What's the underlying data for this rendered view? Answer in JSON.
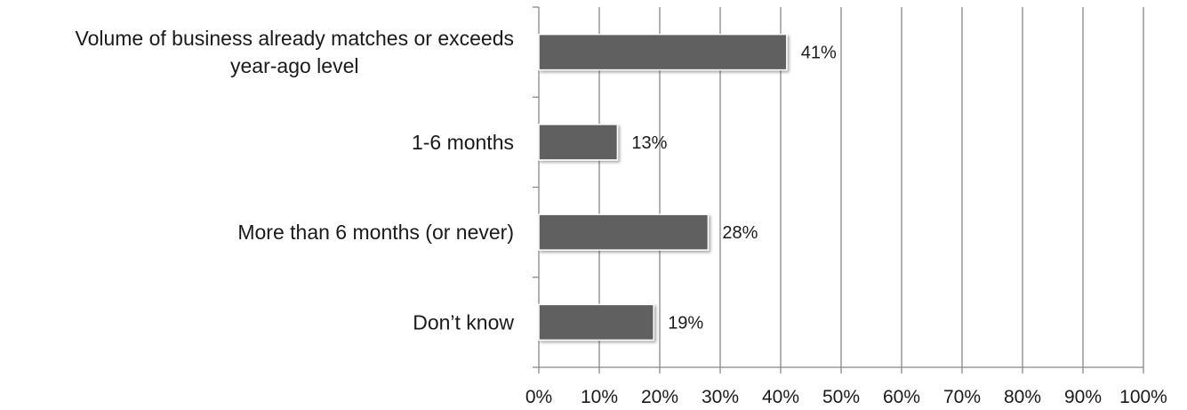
{
  "chart_data": {
    "type": "bar",
    "orientation": "horizontal",
    "categories": [
      "Volume of business already matches or exceeds year-ago level",
      "1-6 months",
      "More than 6 months (or never)",
      "Don’t know"
    ],
    "category_lines": [
      [
        "Volume of business already matches or exceeds",
        "year-ago level"
      ],
      [
        "1-6 months"
      ],
      [
        "More than 6 months (or never)"
      ],
      [
        "Don’t know"
      ]
    ],
    "values": [
      41,
      13,
      28,
      19
    ],
    "data_labels": [
      "41%",
      "13%",
      "28%",
      "19%"
    ],
    "xlim": [
      0,
      100
    ],
    "xticks": [
      0,
      10,
      20,
      30,
      40,
      50,
      60,
      70,
      80,
      90,
      100
    ],
    "xtick_labels": [
      "0%",
      "10%",
      "20%",
      "30%",
      "40%",
      "50%",
      "60%",
      "70%",
      "80%",
      "90%",
      "100%"
    ],
    "title": "",
    "xlabel": "",
    "ylabel": "",
    "grid": true,
    "legend": "none",
    "colors": {
      "bar": "#606060",
      "bar_edge": "#ffffff",
      "grid": "#888888",
      "axis": "#888888",
      "text": "#1a1a1a"
    }
  }
}
